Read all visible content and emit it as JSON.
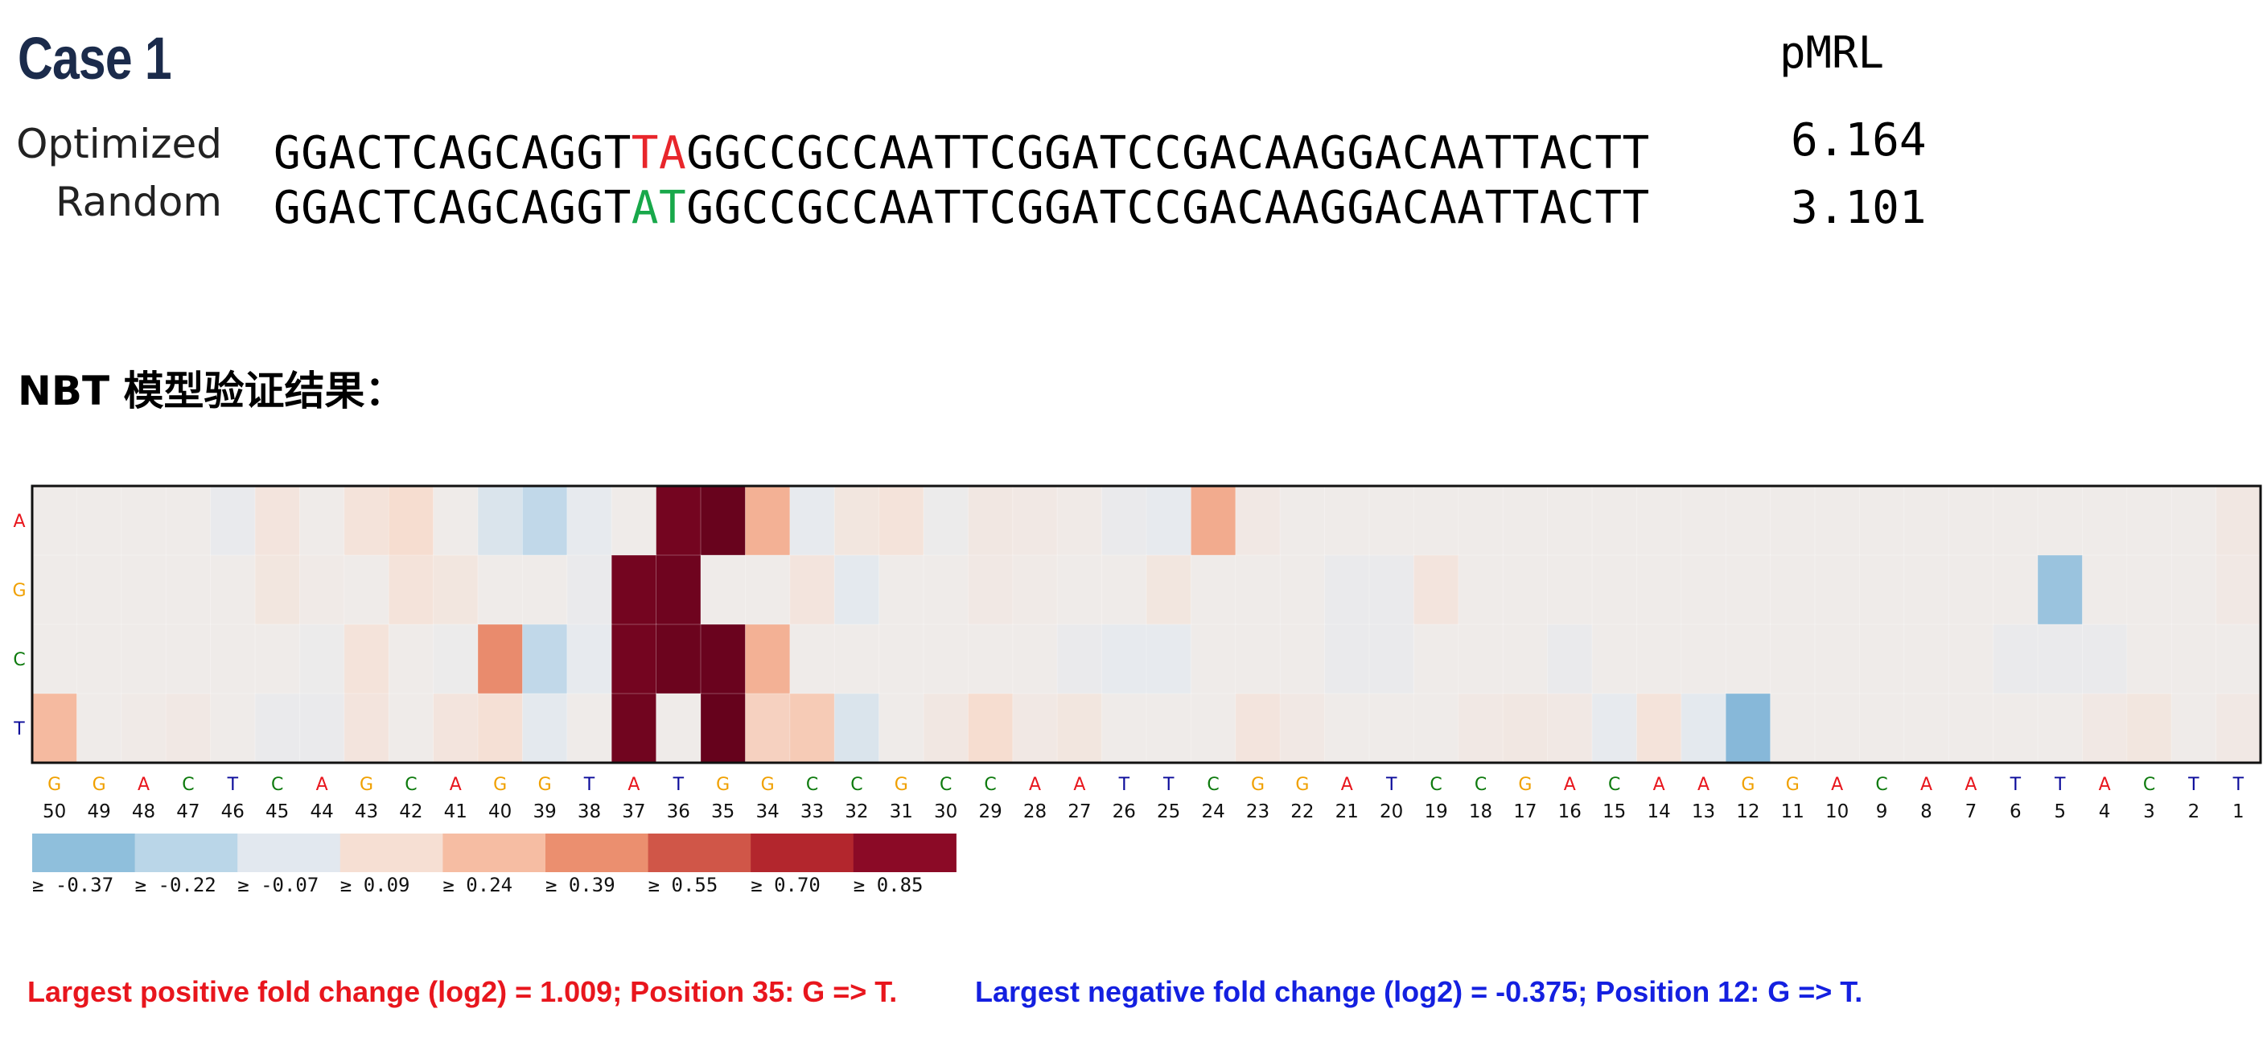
{
  "header": {
    "case_title": "Case 1",
    "pmrl_label": "pMRL",
    "section_title": "NBT 模型验证结果："
  },
  "sequences": [
    {
      "label": "Optimized",
      "prefix": "GGACTCAGCAGGT",
      "highlight": "TA",
      "suffix": "GGCCGCCAATTCGGATCCGACAAGGACAATTACTT",
      "highlight_color": "#e8262b",
      "pmrl": "6.164"
    },
    {
      "label": "Random",
      "prefix": "GGACTCAGCAGGT",
      "highlight": "AT",
      "suffix": "GGCCGCCAATTCGGATCCGACAAGGACAATTACTT",
      "highlight_color": "#18a84a",
      "pmrl": "3.101"
    }
  ],
  "chart_data": {
    "type": "heatmap",
    "rows": [
      "A",
      "G",
      "C",
      "T"
    ],
    "row_colors": {
      "A": "#e8161d",
      "G": "#f0a000",
      "C": "#0d7a0d",
      "T": "#0a0a9a"
    },
    "x_positions": [
      50,
      49,
      48,
      47,
      46,
      45,
      44,
      43,
      42,
      41,
      40,
      39,
      38,
      37,
      36,
      35,
      34,
      33,
      32,
      31,
      30,
      29,
      28,
      27,
      26,
      25,
      24,
      23,
      22,
      21,
      20,
      19,
      18,
      17,
      16,
      15,
      14,
      13,
      12,
      11,
      10,
      9,
      8,
      7,
      6,
      5,
      4,
      3,
      2,
      1
    ],
    "x_bases": [
      "G",
      "G",
      "A",
      "C",
      "T",
      "C",
      "A",
      "G",
      "C",
      "A",
      "G",
      "G",
      "T",
      "A",
      "T",
      "G",
      "G",
      "C",
      "C",
      "G",
      "C",
      "C",
      "A",
      "A",
      "T",
      "T",
      "C",
      "G",
      "G",
      "A",
      "T",
      "C",
      "C",
      "G",
      "A",
      "C",
      "A",
      "A",
      "G",
      "G",
      "A",
      "C",
      "A",
      "A",
      "T",
      "T",
      "A",
      "C",
      "T",
      "T"
    ],
    "values": [
      [
        0.0,
        0.0,
        0.0,
        0.0,
        -0.04,
        0.05,
        0.0,
        0.06,
        0.1,
        0.0,
        -0.1,
        -0.2,
        -0.05,
        0.0,
        0.95,
        1.0,
        0.28,
        -0.05,
        0.04,
        0.06,
        -0.02,
        0.03,
        0.02,
        0.01,
        -0.03,
        -0.05,
        0.3,
        0.02,
        0.0,
        0.0,
        0.0,
        0.0,
        0.0,
        0.0,
        0.0,
        0.0,
        0.0,
        0.0,
        0.0,
        0.0,
        0.0,
        0.0,
        0.0,
        0.0,
        0.0,
        0.0,
        0.0,
        0.0,
        0.0,
        0.03
      ],
      [
        0.0,
        0.0,
        0.0,
        0.0,
        0.0,
        0.04,
        0.01,
        0.0,
        0.06,
        0.04,
        0.0,
        0.0,
        -0.03,
        0.95,
        0.97,
        0.0,
        0.0,
        0.05,
        -0.06,
        0.0,
        0.0,
        0.02,
        0.01,
        0.0,
        0.0,
        0.04,
        0.0,
        0.0,
        0.0,
        -0.03,
        -0.03,
        0.05,
        0.0,
        0.0,
        0.0,
        0.0,
        0.0,
        0.0,
        0.0,
        0.0,
        0.0,
        0.0,
        0.0,
        0.0,
        0.0,
        -0.32,
        0.0,
        0.0,
        0.0,
        0.02
      ],
      [
        0.0,
        0.0,
        0.0,
        0.0,
        0.0,
        0.0,
        -0.02,
        0.06,
        0.0,
        -0.02,
        0.4,
        -0.2,
        -0.05,
        0.95,
        0.98,
        0.99,
        0.28,
        0.0,
        0.0,
        0.0,
        0.0,
        0.0,
        0.0,
        -0.03,
        -0.05,
        -0.05,
        0.0,
        0.0,
        0.0,
        -0.03,
        -0.03,
        0.0,
        0.0,
        0.0,
        -0.03,
        0.0,
        0.0,
        0.0,
        0.0,
        0.0,
        0.0,
        0.0,
        0.0,
        0.0,
        -0.03,
        -0.03,
        -0.03,
        0.0,
        0.0,
        0.0
      ],
      [
        0.25,
        0.0,
        0.01,
        0.02,
        0.0,
        -0.03,
        -0.03,
        0.05,
        0.0,
        0.05,
        0.08,
        -0.06,
        0.0,
        0.96,
        0.0,
        1.009,
        0.15,
        0.18,
        -0.1,
        0.0,
        0.03,
        0.1,
        0.02,
        0.04,
        0.0,
        0.0,
        0.0,
        0.05,
        0.02,
        0.0,
        0.0,
        0.0,
        0.02,
        0.03,
        0.02,
        -0.05,
        0.06,
        -0.06,
        -0.375,
        0.0,
        0.0,
        0.0,
        0.0,
        0.0,
        0.0,
        0.0,
        0.02,
        0.04,
        0.0,
        0.02
      ]
    ],
    "legend": {
      "thresholds": [
        "≥ -0.37",
        "≥ -0.22",
        "≥ -0.07",
        "≥ 0.09",
        "≥ 0.24",
        "≥ 0.39",
        "≥ 0.55",
        "≥ 0.70",
        "≥ 0.85"
      ],
      "colors": [
        "#8fbfdc",
        "#bad6e8",
        "#e2e8ef",
        "#f6dfd3",
        "#f6bda3",
        "#eb8f6f",
        "#d05648",
        "#b3262d",
        "#8b0a26"
      ]
    }
  },
  "footer": {
    "positive": "Largest positive fold change (log2) = 1.009; Position 35: G => T.",
    "negative": "Largest negative fold change (log2) = -0.375; Position 12: G => T."
  }
}
